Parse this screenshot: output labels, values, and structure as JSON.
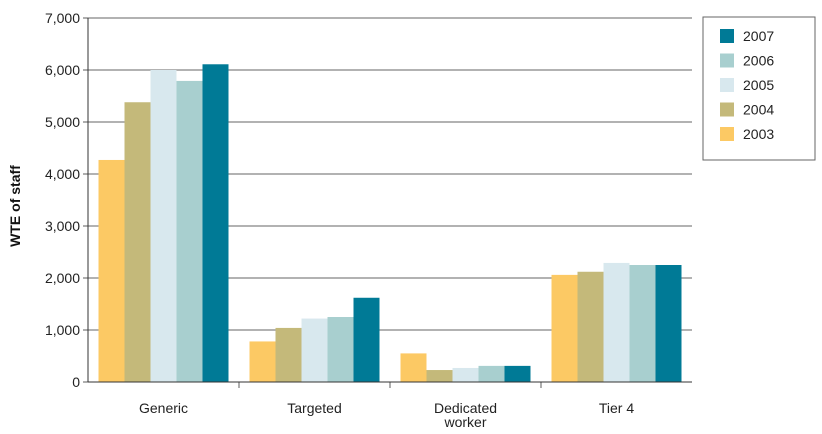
{
  "chart_data": {
    "type": "bar",
    "title": "",
    "xlabel": "",
    "ylabel": "WTE of staff",
    "ylim": [
      0,
      7000
    ],
    "yticks": [
      0,
      1000,
      2000,
      3000,
      4000,
      5000,
      6000,
      7000
    ],
    "ytick_labels": [
      "0",
      "1,000",
      "2,000",
      "3,000",
      "4,000",
      "5,000",
      "6,000",
      "7,000"
    ],
    "grid": true,
    "legend_position": "top-right",
    "categories": [
      {
        "lines": [
          "Generic"
        ]
      },
      {
        "lines": [
          "Targeted"
        ]
      },
      {
        "lines": [
          "Dedicated",
          "worker"
        ]
      },
      {
        "lines": [
          "Tier 4"
        ]
      }
    ],
    "series": [
      {
        "name": "2003",
        "color": "#fcc964",
        "values": [
          4270,
          780,
          550,
          2060
        ]
      },
      {
        "name": "2004",
        "color": "#c4b97a",
        "values": [
          5380,
          1040,
          230,
          2120
        ]
      },
      {
        "name": "2005",
        "color": "#d8e8ee",
        "values": [
          6000,
          1220,
          270,
          2290
        ]
      },
      {
        "name": "2006",
        "color": "#a8cfcf",
        "values": [
          5790,
          1250,
          310,
          2250
        ]
      },
      {
        "name": "2007",
        "color": "#007a96",
        "values": [
          6110,
          1620,
          310,
          2250
        ]
      }
    ],
    "legend_order": [
      "2007",
      "2006",
      "2005",
      "2004",
      "2003"
    ]
  }
}
